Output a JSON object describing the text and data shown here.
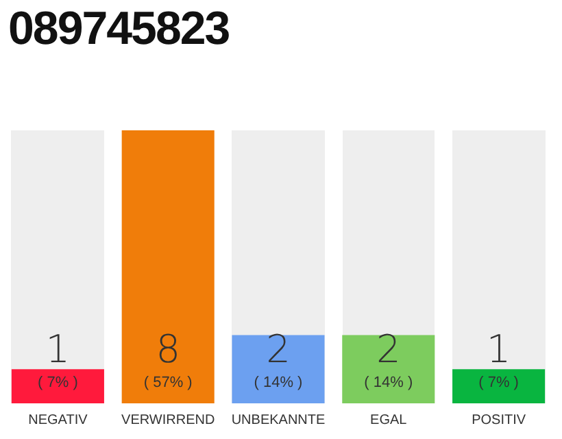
{
  "chart_data": {
    "type": "bar",
    "title": "089745823",
    "categories": [
      "NEGATIV",
      "VERWIRREND",
      "UNBEKANNTE",
      "EGAL",
      "POSITIV"
    ],
    "values": [
      1,
      8,
      2,
      2,
      1
    ],
    "colors": [
      "#ff1a3c",
      "#f07d0a",
      "#6ca0f0",
      "#7dcc5e",
      "#09b540"
    ],
    "data_labels": true,
    "annotations": [
      "( 7% )",
      "( 57% )",
      "( 14% )",
      "( 14% )",
      "( 7% )"
    ],
    "grid": false,
    "legend": false
  }
}
